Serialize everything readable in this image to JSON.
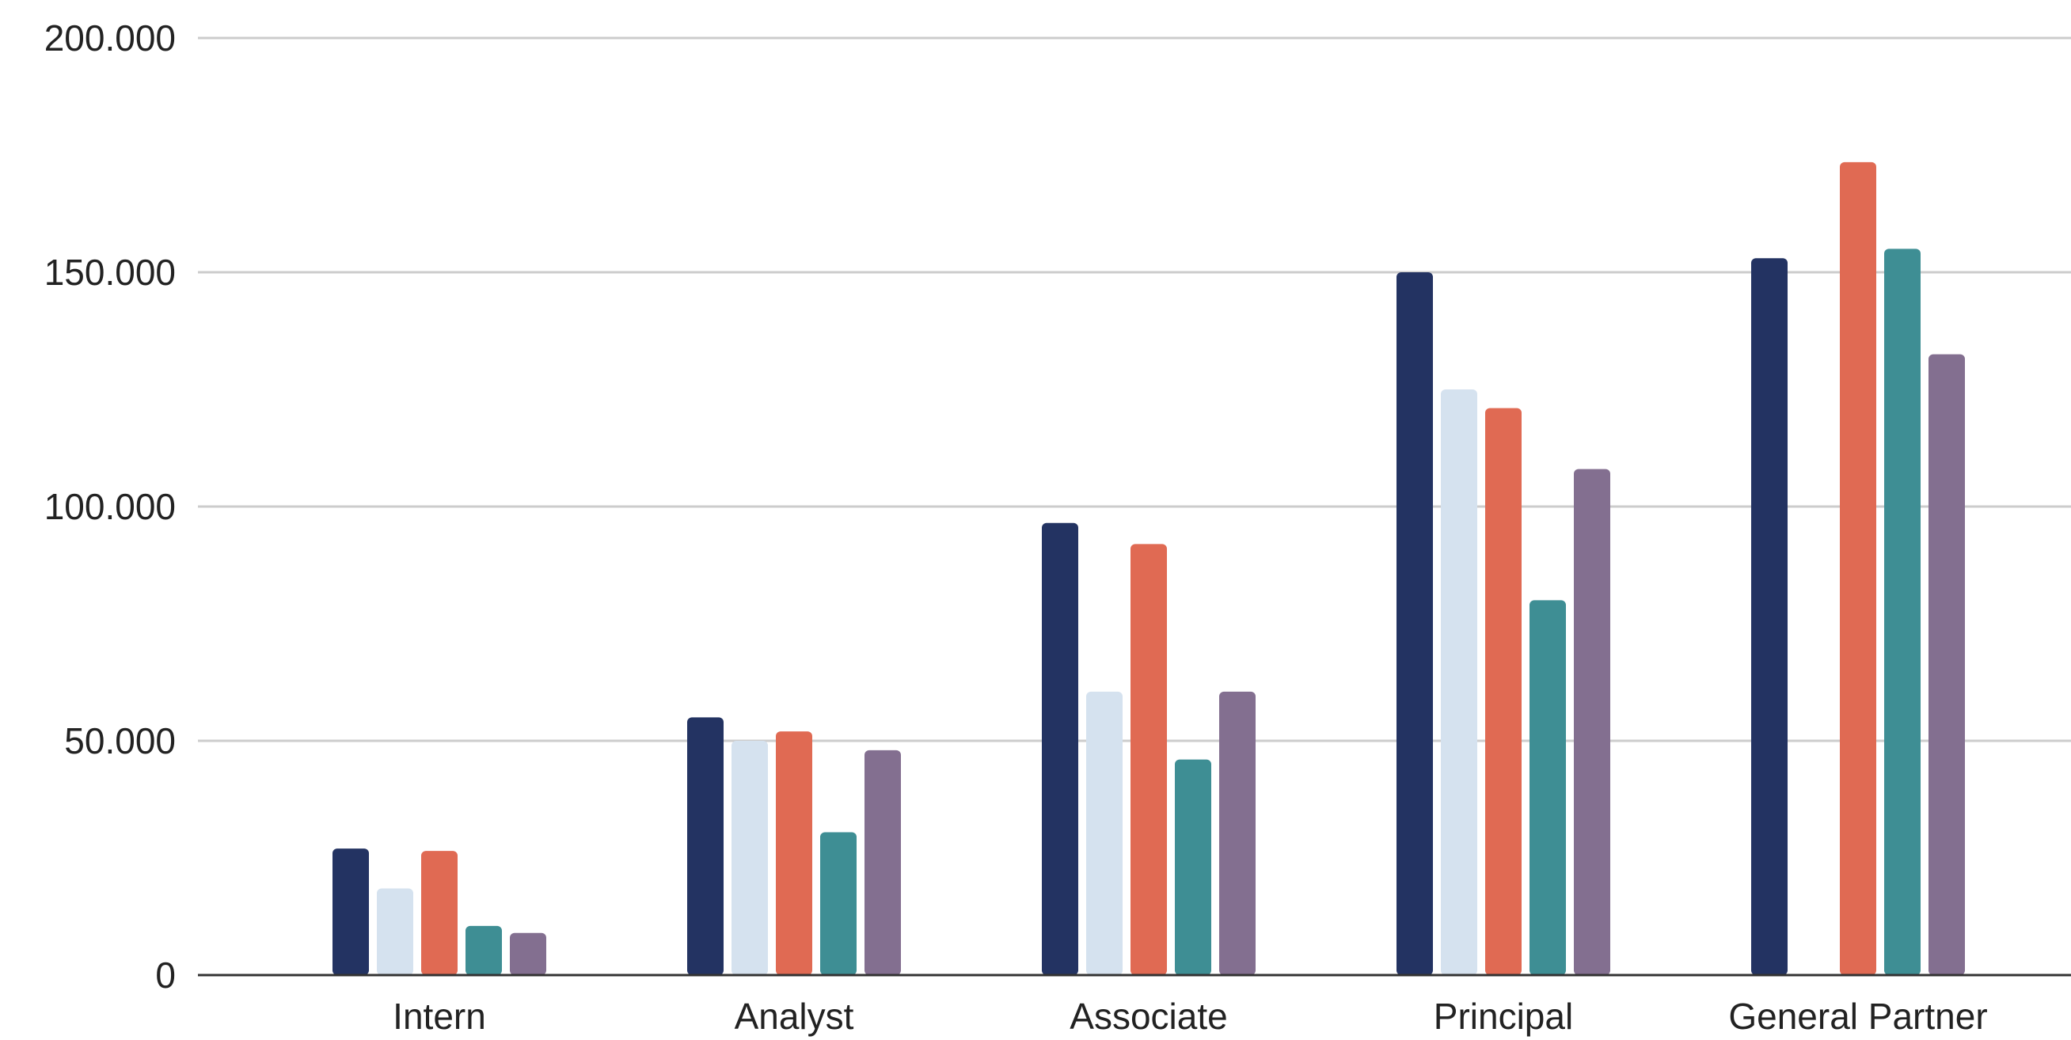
{
  "chart_data": {
    "type": "bar",
    "title": "",
    "xlabel": "",
    "ylabel": "",
    "ylim": [
      0,
      200000
    ],
    "yticks": [
      {
        "value": 0,
        "label": "0"
      },
      {
        "value": 50000,
        "label": "50.000"
      },
      {
        "value": 100000,
        "label": "100.000"
      },
      {
        "value": 150000,
        "label": "150.000"
      },
      {
        "value": 200000,
        "label": "200.000"
      }
    ],
    "grid": true,
    "legend": "none",
    "categories": [
      "Intern",
      "Analyst",
      "Associate",
      "Principal",
      "General Partner"
    ],
    "series": [
      {
        "color": "#233362",
        "values": [
          27000,
          55000,
          96500,
          150000,
          153000
        ]
      },
      {
        "color": "#d5e2ef",
        "values": [
          18500,
          50000,
          60500,
          125000,
          null
        ]
      },
      {
        "color": "#e06a53",
        "values": [
          26500,
          52000,
          92000,
          121000,
          173500
        ]
      },
      {
        "color": "#3e8e94",
        "values": [
          10500,
          30500,
          46000,
          80000,
          155000
        ]
      },
      {
        "color": "#836f90",
        "values": [
          9000,
          48000,
          60500,
          108000,
          132500
        ]
      }
    ]
  }
}
